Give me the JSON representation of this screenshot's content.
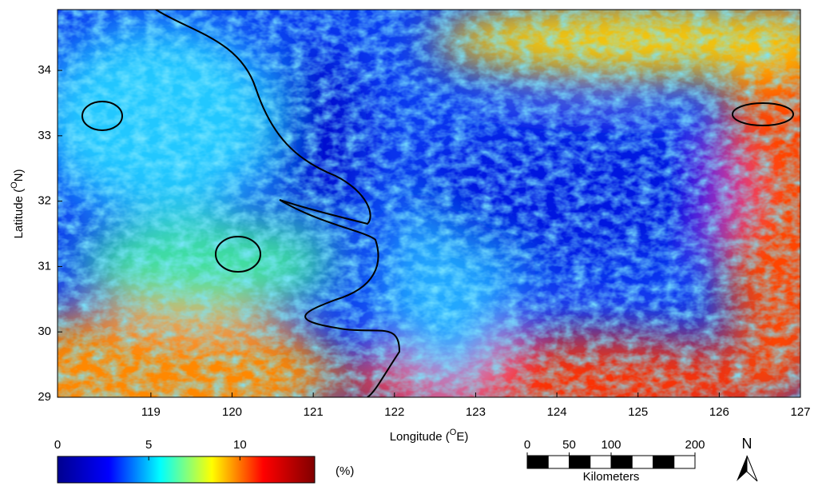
{
  "map": {
    "xlabel": {
      "prefix": "Longitude (",
      "superscript": "O",
      "suffix": "E)"
    },
    "ylabel": {
      "prefix": "Latitude (",
      "superscript": "O",
      "suffix": "N)"
    },
    "xlim": [
      117.85,
      127
    ],
    "ylim": [
      29,
      34.93
    ],
    "xticks": [
      119,
      120,
      121,
      122,
      123,
      124,
      125,
      126,
      127
    ],
    "yticks": [
      29,
      30,
      31,
      32,
      33,
      34
    ],
    "colorbar": {
      "lim": [
        0,
        14.1
      ],
      "ticks": [
        0,
        5,
        10
      ],
      "unit": "(%)",
      "colors": [
        "#00008f",
        "#0000ff",
        "#00ffff",
        "#ffff00",
        "#ff0000",
        "#800000"
      ]
    },
    "scalebar": {
      "lim": [
        0,
        200
      ],
      "ticks": [
        0,
        50,
        100,
        200
      ],
      "label": "Kilometers"
    },
    "north": "N"
  }
}
